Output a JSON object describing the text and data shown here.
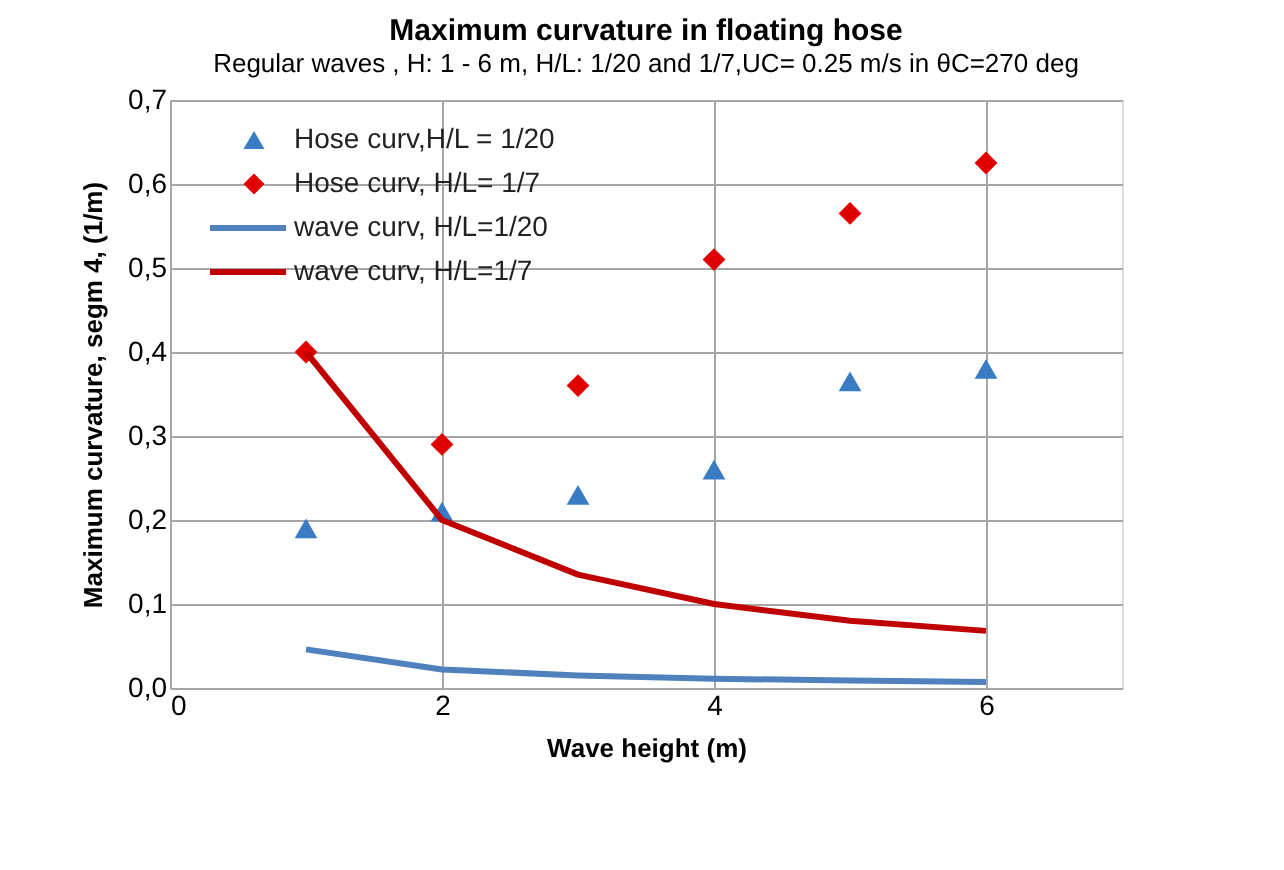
{
  "chart_data": {
    "type": "scatter",
    "title": "Maximum curvature in floating hose",
    "subtitle": "Regular waves , H: 1 - 6 m, H/L: 1/20 and 1/7,UC= 0.25 m/s in θC=270 deg",
    "xlabel": "Wave height (m)",
    "ylabel": "Maximum curvature, segm 4, (1/m)",
    "x": [
      1,
      2,
      3,
      4,
      5,
      6
    ],
    "series": [
      {
        "name": "Hose curv,H/L = 1/20",
        "type": "scatter",
        "marker": "triangle",
        "color": "#3a7cc4",
        "values": [
          0.19,
          0.21,
          0.23,
          0.26,
          0.365,
          0.38
        ]
      },
      {
        "name": "Hose curv, H/L= 1/7",
        "type": "scatter",
        "marker": "diamond",
        "color": "#e00000",
        "values": [
          0.4,
          0.29,
          0.36,
          0.51,
          0.565,
          0.625
        ]
      },
      {
        "name": "wave curv, H/L=1/20",
        "type": "line",
        "marker": "none",
        "color": "#4f81bd",
        "values": [
          0.046,
          0.022,
          0.015,
          0.011,
          0.009,
          0.007
        ]
      },
      {
        "name": "wave curv, H/L=1/7",
        "type": "line",
        "marker": "none",
        "color": "#c00000",
        "values": [
          0.4,
          0.2,
          0.135,
          0.1,
          0.08,
          0.068
        ]
      }
    ],
    "xlim": [
      0,
      7
    ],
    "xticks": [
      0,
      2,
      4,
      6
    ],
    "ylim": [
      0,
      0.7
    ],
    "yticks": [
      {
        "value": 0,
        "label": "0,0"
      },
      {
        "value": 0.1,
        "label": "0,1"
      },
      {
        "value": 0.2,
        "label": "0,2"
      },
      {
        "value": 0.3,
        "label": "0,3"
      },
      {
        "value": 0.4,
        "label": "0,4"
      },
      {
        "value": 0.5,
        "label": "0,5"
      },
      {
        "value": 0.6,
        "label": "0,6"
      },
      {
        "value": 0.7,
        "label": "0,7"
      }
    ],
    "grid": true,
    "legend": "top left"
  }
}
